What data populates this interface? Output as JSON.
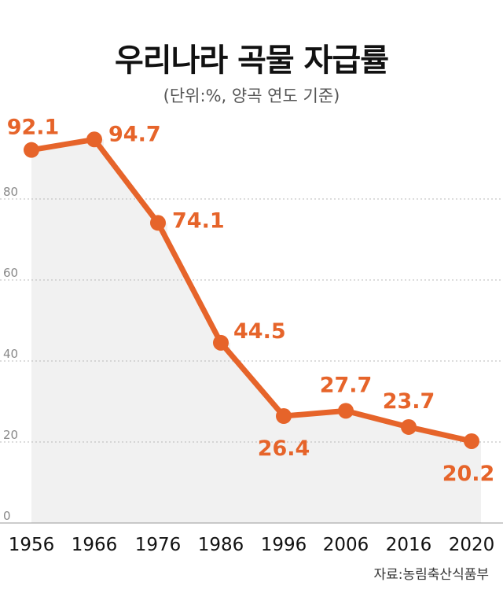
{
  "chart_data": {
    "type": "line",
    "title": "우리나라 곡물 자급률",
    "subtitle": "(단위:%, 양곡 연도 기준)",
    "source": "자료:농림축산식품부",
    "x": [
      "1956",
      "1966",
      "1976",
      "1986",
      "1996",
      "2006",
      "2016",
      "2020"
    ],
    "values": [
      92.1,
      94.7,
      74.1,
      44.5,
      26.4,
      27.7,
      23.7,
      20.2
    ],
    "value_labels": [
      "92.1",
      "94.7",
      "74.1",
      "44.5",
      "26.4",
      "27.7",
      "23.7",
      "20.2"
    ],
    "yticks": [
      0,
      20,
      40,
      60,
      80
    ],
    "ylim": [
      0,
      100
    ],
    "grid": true,
    "color": "#e6642a"
  }
}
